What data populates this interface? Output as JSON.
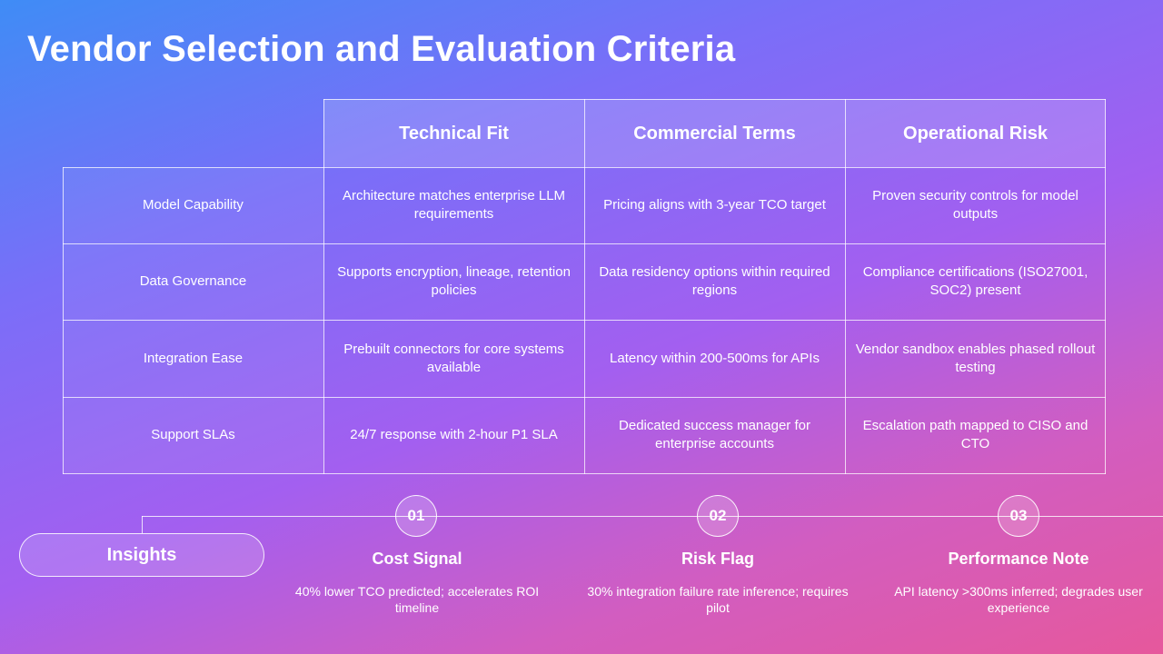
{
  "title": "Vendor Selection and Evaluation Criteria",
  "table": {
    "columns": [
      "Technical Fit",
      "Commercial Terms",
      "Operational Risk"
    ],
    "rows": [
      {
        "label": "Model Capability",
        "cells": [
          "Architecture matches enterprise LLM requirements",
          "Pricing aligns with 3-year TCO target",
          "Proven security controls for model outputs"
        ]
      },
      {
        "label": "Data Governance",
        "cells": [
          "Supports encryption, lineage, retention policies",
          "Data residency options within required regions",
          "Compliance certifications (ISO27001, SOC2) present"
        ]
      },
      {
        "label": "Integration Ease",
        "cells": [
          "Prebuilt connectors for core systems available",
          "Latency within 200-500ms for APIs",
          "Vendor sandbox enables phased rollout testing"
        ]
      },
      {
        "label": "Support SLAs",
        "cells": [
          "24/7 response with 2-hour P1 SLA",
          "Dedicated success manager for enterprise accounts",
          "Escalation path mapped to CISO and CTO"
        ]
      }
    ]
  },
  "insights": {
    "label": "Insights",
    "items": [
      {
        "number": "01",
        "title": "Cost Signal",
        "text": "40% lower TCO predicted; accelerates ROI timeline"
      },
      {
        "number": "02",
        "title": "Risk Flag",
        "text": "30% integration failure rate inference; requires pilot"
      },
      {
        "number": "03",
        "title": "Performance Note",
        "text": "API latency >300ms inferred; degrades user experience"
      }
    ]
  }
}
